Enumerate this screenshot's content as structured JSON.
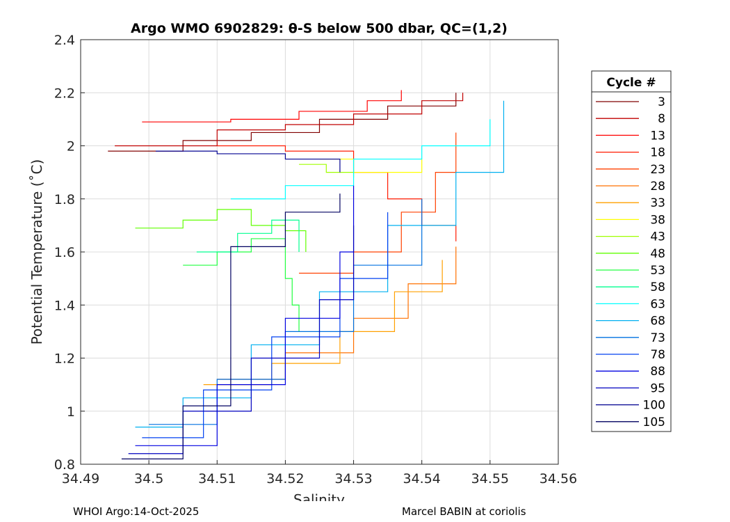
{
  "chart_data": {
    "type": "line",
    "title": "Argo WMO 6902829: θ-S below 500 dbar,  QC=(1,2)",
    "xlabel": "Salinity",
    "ylabel": "Potential Temperature (˚C)",
    "xlim": [
      34.49,
      34.56
    ],
    "ylim": [
      0.8,
      2.4
    ],
    "xticks": [
      "34.49",
      "34.5",
      "34.51",
      "34.52",
      "34.53",
      "34.54",
      "34.55",
      "34.56"
    ],
    "yticks": [
      "0.8",
      "1",
      "1.2",
      "1.4",
      "1.6",
      "1.8",
      "2",
      "2.2",
      "2.4"
    ],
    "grid": true,
    "legend": {
      "title": "Cycle #",
      "placement": "right-outside"
    },
    "series": [
      {
        "name": "3",
        "color": "#800000",
        "points": [
          [
            34.494,
            1.98
          ],
          [
            34.505,
            2.02
          ],
          [
            34.515,
            2.05
          ],
          [
            34.525,
            2.1
          ],
          [
            34.535,
            2.15
          ],
          [
            34.545,
            2.2
          ]
        ]
      },
      {
        "name": "8",
        "color": "#c00000",
        "points": [
          [
            34.495,
            2.0
          ],
          [
            34.51,
            2.06
          ],
          [
            34.52,
            2.08
          ],
          [
            34.53,
            2.12
          ],
          [
            34.54,
            2.17
          ],
          [
            34.546,
            2.2
          ]
        ]
      },
      {
        "name": "13",
        "color": "#ff0000",
        "points": [
          [
            34.499,
            2.09
          ],
          [
            34.512,
            2.1
          ],
          [
            34.522,
            2.13
          ],
          [
            34.532,
            2.17
          ],
          [
            34.537,
            2.21
          ]
        ]
      },
      {
        "name": "18",
        "color": "#ff1a00",
        "points": [
          [
            34.51,
            2.0
          ],
          [
            34.52,
            1.98
          ],
          [
            34.53,
            1.9
          ],
          [
            34.535,
            1.8
          ],
          [
            34.54,
            1.7
          ],
          [
            34.545,
            1.64
          ]
        ]
      },
      {
        "name": "23",
        "color": "#ff4000",
        "points": [
          [
            34.522,
            1.52
          ],
          [
            34.53,
            1.6
          ],
          [
            34.537,
            1.75
          ],
          [
            34.542,
            1.9
          ],
          [
            34.545,
            2.05
          ]
        ]
      },
      {
        "name": "28",
        "color": "#ff7000",
        "points": [
          [
            34.51,
            1.12
          ],
          [
            34.52,
            1.22
          ],
          [
            34.53,
            1.35
          ],
          [
            34.538,
            1.48
          ],
          [
            34.545,
            1.62
          ]
        ]
      },
      {
        "name": "33",
        "color": "#ffa000",
        "points": [
          [
            34.508,
            1.1
          ],
          [
            34.518,
            1.18
          ],
          [
            34.528,
            1.3
          ],
          [
            34.536,
            1.45
          ],
          [
            34.543,
            1.57
          ]
        ]
      },
      {
        "name": "38",
        "color": "#ffff00",
        "points": [
          [
            34.525,
            1.95
          ],
          [
            34.53,
            1.9
          ],
          [
            34.54,
            1.95
          ]
        ]
      },
      {
        "name": "43",
        "color": "#a0ff00",
        "points": [
          [
            34.522,
            1.93
          ],
          [
            34.526,
            1.9
          ],
          [
            34.53,
            1.88
          ]
        ]
      },
      {
        "name": "48",
        "color": "#60ff00",
        "points": [
          [
            34.498,
            1.69
          ],
          [
            34.505,
            1.72
          ],
          [
            34.51,
            1.76
          ],
          [
            34.515,
            1.7
          ],
          [
            34.52,
            1.68
          ],
          [
            34.523,
            1.6
          ]
        ]
      },
      {
        "name": "53",
        "color": "#20ff40",
        "points": [
          [
            34.505,
            1.55
          ],
          [
            34.51,
            1.6
          ],
          [
            34.515,
            1.65
          ],
          [
            34.52,
            1.5
          ],
          [
            34.521,
            1.4
          ],
          [
            34.522,
            1.3
          ]
        ]
      },
      {
        "name": "58",
        "color": "#00ff90",
        "points": [
          [
            34.507,
            1.6
          ],
          [
            34.513,
            1.67
          ],
          [
            34.518,
            1.72
          ],
          [
            34.522,
            1.6
          ]
        ]
      },
      {
        "name": "63",
        "color": "#00ffff",
        "points": [
          [
            34.512,
            1.8
          ],
          [
            34.52,
            1.85
          ],
          [
            34.53,
            1.95
          ],
          [
            34.54,
            2.0
          ],
          [
            34.55,
            2.1
          ]
        ]
      },
      {
        "name": "68",
        "color": "#00b0f0",
        "points": [
          [
            34.498,
            0.94
          ],
          [
            34.505,
            1.05
          ],
          [
            34.515,
            1.25
          ],
          [
            34.525,
            1.45
          ],
          [
            34.535,
            1.7
          ],
          [
            34.545,
            1.9
          ],
          [
            34.552,
            2.17
          ]
        ]
      },
      {
        "name": "73",
        "color": "#0070e0",
        "points": [
          [
            34.5,
            0.95
          ],
          [
            34.51,
            1.12
          ],
          [
            34.52,
            1.3
          ],
          [
            34.53,
            1.55
          ],
          [
            34.54,
            1.8
          ]
        ]
      },
      {
        "name": "78",
        "color": "#0040f0",
        "points": [
          [
            34.499,
            0.9
          ],
          [
            34.508,
            1.08
          ],
          [
            34.518,
            1.28
          ],
          [
            34.528,
            1.5
          ],
          [
            34.535,
            1.75
          ]
        ]
      },
      {
        "name": "88",
        "color": "#0000e0",
        "points": [
          [
            34.498,
            0.87
          ],
          [
            34.51,
            1.1
          ],
          [
            34.52,
            1.35
          ],
          [
            34.528,
            1.6
          ],
          [
            34.53,
            1.85
          ]
        ]
      },
      {
        "name": "95",
        "color": "#0000c0",
        "points": [
          [
            34.497,
            0.84
          ],
          [
            34.505,
            1.0
          ],
          [
            34.515,
            1.2
          ],
          [
            34.525,
            1.42
          ],
          [
            34.53,
            1.7
          ]
        ]
      },
      {
        "name": "100",
        "color": "#000090",
        "points": [
          [
            34.501,
            1.98
          ],
          [
            34.51,
            1.97
          ],
          [
            34.52,
            1.95
          ],
          [
            34.528,
            1.9
          ]
        ]
      },
      {
        "name": "105",
        "color": "#000060",
        "points": [
          [
            34.496,
            0.82
          ],
          [
            34.505,
            1.02
          ],
          [
            34.512,
            1.62
          ],
          [
            34.52,
            1.75
          ],
          [
            34.528,
            1.82
          ]
        ]
      }
    ]
  },
  "footer": {
    "left": "WHOI Argo:14-Oct-2025",
    "right": "Marcel BABIN at coriolis"
  }
}
